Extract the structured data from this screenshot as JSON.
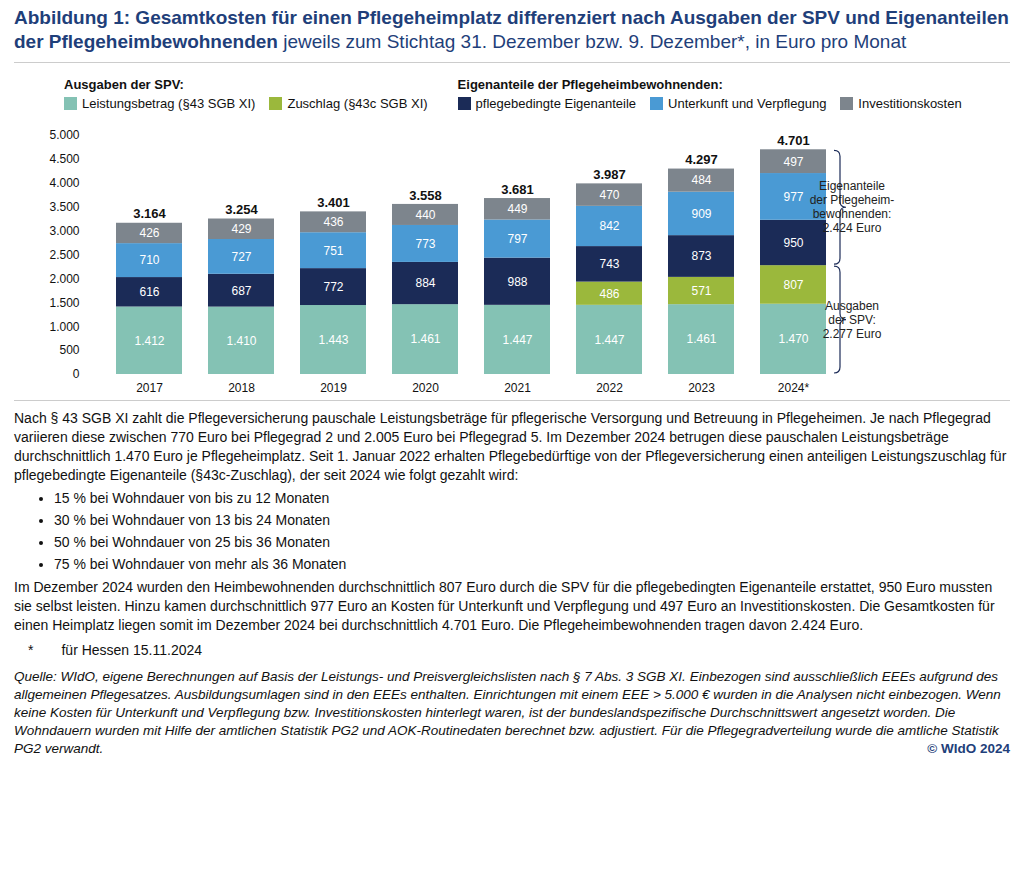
{
  "chart_data": {
    "type": "bar",
    "title": "Abbildung 1: Gesamtkosten für einen Pflegeheimplatz differenziert nach Ausgaben der SPV und Eigenanteilen der Pflegeheimbewohnenden",
    "subtitle": "jeweils zum Stichtag 31. Dezember bzw. 9. Dezember*, in Euro pro Monat",
    "stacked": true,
    "data_labels": true,
    "grid": false,
    "legend": "top",
    "categories": [
      "2017",
      "2018",
      "2019",
      "2020",
      "2021",
      "2022",
      "2023",
      "2024*"
    ],
    "series": [
      {
        "name": "Leistungsbetrag (§43 SGB XI)",
        "color": "#84c2b4",
        "values": [
          1412,
          1410,
          1443,
          1461,
          1447,
          1447,
          1461,
          1470
        ],
        "value_labels": [
          "1.412",
          "1.410",
          "1.443",
          "1.461",
          "1.447",
          "1.447",
          "1.461",
          "1.470"
        ]
      },
      {
        "name": "Zuschlag (§43c SGB XI)",
        "color": "#9bb83c",
        "values": [
          null,
          null,
          null,
          null,
          null,
          486,
          571,
          807
        ],
        "value_labels": [
          null,
          null,
          null,
          null,
          null,
          "486",
          "571",
          "807"
        ]
      },
      {
        "name": "pflegebedingte Eigenanteile",
        "color": "#1b2b57",
        "values": [
          616,
          687,
          772,
          884,
          988,
          743,
          873,
          950
        ],
        "value_labels": [
          "616",
          "687",
          "772",
          "884",
          "988",
          "743",
          "873",
          "950"
        ]
      },
      {
        "name": "Unterkunft und Verpflegung",
        "color": "#4a9ad4",
        "values": [
          710,
          727,
          751,
          773,
          797,
          842,
          909,
          977
        ],
        "value_labels": [
          "710",
          "727",
          "751",
          "773",
          "797",
          "842",
          "909",
          "977"
        ]
      },
      {
        "name": "Investitionskosten",
        "color": "#7d858d",
        "values": [
          426,
          429,
          436,
          440,
          449,
          470,
          484,
          497
        ],
        "value_labels": [
          "426",
          "429",
          "436",
          "440",
          "449",
          "470",
          "484",
          "497"
        ]
      }
    ],
    "totals": [
      3164,
      3254,
      3401,
      3558,
      3681,
      3987,
      4297,
      4701
    ],
    "total_labels": [
      "3.164",
      "3.254",
      "3.401",
      "3.558",
      "3.681",
      "3.987",
      "4.297",
      "4.701"
    ],
    "legend_groups": [
      {
        "title": "Ausgaben der SPV:",
        "series": [
          "Leistungsbetrag (§43 SGB XI)",
          "Zuschlag (§43c SGB XI)"
        ],
        "annotation": "Ausgaben\nder SPV:\n2.277 Euro"
      },
      {
        "title": "Eigenanteile der Pflegeheimbewohnenden:",
        "series": [
          "pflegebedingte Eigenanteile",
          "Unterkunft und Verpflegung",
          "Investitionskosten"
        ],
        "annotation": "Eigenanteile\nder Pflegeheim-\nbewohnenden:\n2.424 Euro"
      }
    ],
    "ylim": [
      0,
      5000
    ],
    "yticks": [
      0,
      {
        "value": 500,
        "label": "500"
      },
      {
        "value": 1000,
        "label": "1.000"
      },
      {
        "value": 1500,
        "label": "1.500"
      },
      {
        "value": 2000,
        "label": "2.000"
      },
      {
        "value": 2500,
        "label": "2.500"
      },
      {
        "value": 3000,
        "label": "3.000"
      },
      {
        "value": 3500,
        "label": "3.500"
      },
      {
        "value": 4000,
        "label": "4.000"
      },
      {
        "value": 4500,
        "label": "4.500"
      },
      {
        "value": 5000,
        "label": "5.000"
      }
    ]
  },
  "description": {
    "intro": "Nach § 43 SGB XI zahlt die Pflegeversicherung pauschale Leistungsbeträge für pflegerische Versorgung und Betreuung in Pflegeheimen. Je nach Pflegegrad variieren diese zwischen 770 Euro bei Pflegegrad 2 und 2.005 Euro bei Pflegegrad 5. Im Dezember 2024 betrugen diese pauschalen Leistungsbeträge durchschnittlich 1.470 Euro je Pflegeheimplatz. Seit 1. Januar 2022 erhalten Pflegebedürftige von der Pflegeversicherung einen anteiligen Leistungszuschlag für pflegebedingte Eigenanteile (§43c-Zuschlag), der seit 2024 wie folgt gezahlt wird:",
    "bullets": [
      "15 % bei Wohndauer von bis zu 12 Monaten",
      "30 % bei Wohndauer von 13 bis 24 Monaten",
      "50 % bei Wohndauer von 25 bis 36 Monaten",
      "75 % bei Wohndauer von mehr als 36 Monaten"
    ],
    "summary": "Im Dezember 2024 wurden den Heimbewohnenden durchschnittlich 807 Euro durch die SPV für die pflegebedingten Eigenanteile erstattet, 950 Euro mussten sie selbst leisten. Hinzu kamen durchschnittlich 977 Euro an Kosten für Unterkunft und Verpflegung und 497 Euro an Investitionskosten. Die Gesamtkosten für einen Heimplatz liegen somit im Dezember 2024 bei durchschnittlich 4.701 Euro. Die Pflegeheimbewohnenden tragen davon 2.424 Euro.",
    "footnote": {
      "mark": "*",
      "text": "für Hessen 15.11.2024"
    },
    "source": "Quelle: WIdO, eigene Berechnungen auf Basis der Leistungs- und Preisvergleichslisten nach § 7 Abs. 3 SGB XI. Einbezogen sind ausschließlich EEEs aufgrund des allgemeinen Pflegesatzes. Ausbildungsumlagen sind in den EEEs enthalten. Einrichtungen mit einem EEE > 5.000 € wurden in die Analysen nicht einbezogen. Wenn keine Kosten für Unterkunft und Verpflegung bzw. Investitionskosten hinterlegt waren, ist der bundeslandspezifische Durchschnittswert angesetzt worden. Die Wohndauern wurden mit Hilfe der amtlichen Statistik PG2 und AOK-Routinedaten berechnet bzw. adjustiert. Für die Pflegegradverteilung wurde die amtliche Statistik PG2 verwandt.",
    "copyright": "© WIdO 2024"
  }
}
